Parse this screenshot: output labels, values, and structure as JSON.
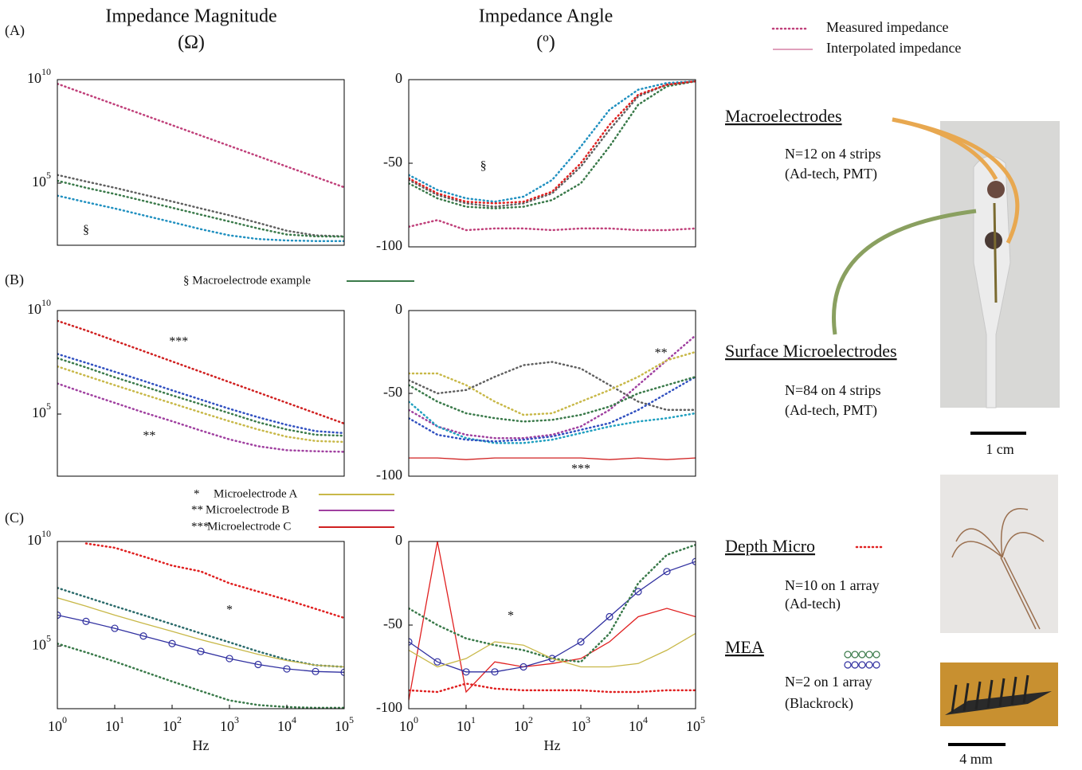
{
  "headers": {
    "magnitude": "Impedance Magnitude",
    "magnitude_unit": "(Ω)",
    "angle": "Impedance Angle",
    "angle_unit": "(º)"
  },
  "panels": [
    "(A)",
    "(B)",
    "(C)"
  ],
  "legend": {
    "measured": "Measured impedance",
    "interpolated": "Interpolated impedance",
    "macro": "§ Macroelectrode example",
    "micro_a_mark": "*",
    "micro_a": "Microelectrode A",
    "micro_b_mark": "**",
    "micro_b": "Microelectrode B",
    "micro_c_mark": "***",
    "micro_c": "Microelectrode C"
  },
  "devices": {
    "macro_title": "Macroelectrodes",
    "macro_n": "N=12 on 4 strips",
    "macro_src": "(Ad-tech, PMT)",
    "surface_title": "Surface Microelectrodes",
    "surface_n": "N=84 on 4 strips",
    "surface_src": "(Ad-tech, PMT)",
    "scale1": "1 cm",
    "depth_title": "Depth Micro",
    "depth_n": "N=10 on 1 array",
    "depth_src": "(Ad-tech)",
    "mea_title": "MEA",
    "mea_n": "N=2 on 1 array",
    "mea_src": "(Blackrock)",
    "scale2": "4 mm"
  },
  "chart_data": [
    {
      "type": "line",
      "xlog": true,
      "ylog": true,
      "xlim": [
        1,
        100000
      ],
      "ylim": [
        100,
        10000000000
      ],
      "yticks": [
        {
          "value": 100000,
          "label": "10",
          "sup": "5"
        },
        {
          "value": 10000000000,
          "label": "10",
          "sup": "10"
        }
      ],
      "x": [
        1,
        3.16,
        10,
        31.6,
        100,
        316,
        1000,
        3162,
        10000,
        31623,
        100000
      ],
      "annotations": [
        {
          "text": "§",
          "x": 3.16,
          "y": 500
        }
      ],
      "series": [
        {
          "color": "#c0407a",
          "dotted": true,
          "values": [
            6300000000,
            2000000000,
            630000000,
            200000000,
            63000000,
            20000000,
            6300000,
            2000000,
            630000,
            200000,
            63000
          ]
        },
        {
          "color": "#606060",
          "dotted": true,
          "values": [
            250000,
            120000,
            60000,
            28000,
            13000,
            6000,
            2800,
            1200,
            500,
            300,
            270
          ]
        },
        {
          "color": "#3a7a4a",
          "dotted": true,
          "values": [
            130000,
            60000,
            30000,
            14000,
            6500,
            3000,
            1400,
            650,
            330,
            270,
            260
          ]
        },
        {
          "color": "#2090c0",
          "dotted": true,
          "values": [
            25000,
            12000,
            6000,
            2800,
            1300,
            600,
            300,
            200,
            170,
            160,
            160
          ]
        }
      ]
    },
    {
      "type": "line",
      "xlog": true,
      "ylog": false,
      "xlim": [
        1,
        100000
      ],
      "ylim": [
        -100,
        0
      ],
      "yticks": [
        -100,
        -50,
        0
      ],
      "x": [
        1,
        3.16,
        10,
        31.6,
        100,
        316,
        1000,
        3162,
        10000,
        31623,
        100000
      ],
      "annotations": [
        {
          "text": "§",
          "x": 20,
          "y": -52
        }
      ],
      "series": [
        {
          "color": "#c0407a",
          "dotted": true,
          "values": [
            -88,
            -84,
            -90,
            -89,
            -89,
            -90,
            -89,
            -89,
            -90,
            -90,
            -89
          ]
        },
        {
          "color": "#2090c0",
          "dotted": true,
          "values": [
            -57,
            -66,
            -71,
            -73,
            -70,
            -60,
            -40,
            -18,
            -6,
            -2,
            -1
          ]
        },
        {
          "color": "#3a7a4a",
          "dotted": true,
          "values": [
            -62,
            -71,
            -76,
            -77,
            -76,
            -72,
            -62,
            -40,
            -15,
            -4,
            -1
          ]
        },
        {
          "color": "#606060",
          "dotted": true,
          "values": [
            -60,
            -69,
            -74,
            -76,
            -74,
            -68,
            -52,
            -30,
            -10,
            -3,
            -1
          ]
        },
        {
          "color": "#e02020",
          "dotted": true,
          "values": [
            -59,
            -68,
            -73,
            -74,
            -73,
            -67,
            -50,
            -27,
            -9,
            -3,
            -1
          ]
        }
      ]
    },
    {
      "type": "line",
      "xlog": true,
      "ylog": true,
      "xlim": [
        1,
        100000
      ],
      "ylim": [
        100,
        10000000000
      ],
      "yticks": [
        {
          "value": 100000,
          "label": "10",
          "sup": "5"
        },
        {
          "value": 10000000000,
          "label": "10",
          "sup": "10"
        }
      ],
      "x": [
        1,
        3.16,
        10,
        31.6,
        100,
        316,
        1000,
        3162,
        10000,
        31623,
        100000
      ],
      "annotations": [
        {
          "text": "***",
          "x": 130,
          "y": 300000000
        },
        {
          "text": "**",
          "x": 40,
          "y": 8000
        }
      ],
      "series": [
        {
          "color": "#d02020",
          "dotted": true,
          "values": [
            3200000000,
            1100000000,
            350000000,
            110000000,
            35000000,
            11000000,
            3500000,
            1100000,
            350000,
            110000,
            35000
          ]
        },
        {
          "color": "#3050c0",
          "dotted": true,
          "values": [
            80000000,
            30000000,
            11000000,
            4000000,
            1400000,
            500000,
            180000,
            70000,
            30000,
            15000,
            12000
          ]
        },
        {
          "color": "#3a7a4a",
          "dotted": true,
          "values": [
            50000000,
            18000000,
            6000000,
            2200000,
            800000,
            300000,
            110000,
            40000,
            18000,
            10000,
            9000
          ]
        },
        {
          "color": "#c8b848",
          "dotted": true,
          "values": [
            20000000,
            7000000,
            2500000,
            900000,
            330000,
            120000,
            45000,
            18000,
            8000,
            5000,
            4500
          ]
        },
        {
          "color": "#a040a0",
          "dotted": true,
          "values": [
            3000000,
            1000000,
            350000,
            120000,
            45000,
            16000,
            6000,
            2800,
            1800,
            1600,
            1500
          ]
        }
      ]
    },
    {
      "type": "line",
      "xlog": true,
      "ylog": false,
      "xlim": [
        1,
        100000
      ],
      "ylim": [
        -100,
        0
      ],
      "yticks": [
        -100,
        -50,
        0
      ],
      "x": [
        1,
        3.16,
        10,
        31.6,
        100,
        316,
        1000,
        3162,
        10000,
        31623,
        100000
      ],
      "annotations": [
        {
          "text": "**",
          "x": 25000,
          "y": -26
        },
        {
          "text": "***",
          "x": 1000,
          "y": -96
        }
      ],
      "series": [
        {
          "color": "#d02020",
          "dotted": false,
          "values": [
            -89,
            -89,
            -90,
            -89,
            -89,
            -89,
            -89,
            -90,
            -89,
            -90,
            -89
          ]
        },
        {
          "color": "#a040a0",
          "dotted": true,
          "values": [
            -60,
            -70,
            -75,
            -77,
            -77,
            -75,
            -70,
            -60,
            -45,
            -30,
            -15
          ]
        },
        {
          "color": "#606060",
          "dotted": true,
          "values": [
            -42,
            -50,
            -48,
            -40,
            -33,
            -31,
            -35,
            -45,
            -55,
            -60,
            -60
          ]
        },
        {
          "color": "#c8b848",
          "dotted": true,
          "values": [
            -38,
            -38,
            -45,
            -55,
            -63,
            -62,
            -55,
            -48,
            -40,
            -30,
            -25
          ]
        },
        {
          "color": "#20a0c0",
          "dotted": true,
          "values": [
            -55,
            -70,
            -77,
            -80,
            -80,
            -78,
            -74,
            -70,
            -67,
            -65,
            -62
          ]
        },
        {
          "color": "#3050c0",
          "dotted": true,
          "values": [
            -65,
            -75,
            -78,
            -79,
            -78,
            -76,
            -72,
            -68,
            -60,
            -50,
            -40
          ]
        },
        {
          "color": "#3a7a4a",
          "dotted": true,
          "values": [
            -45,
            -55,
            -62,
            -65,
            -67,
            -66,
            -63,
            -58,
            -50,
            -45,
            -40
          ]
        }
      ]
    },
    {
      "type": "line",
      "xlog": true,
      "ylog": true,
      "xlim": [
        1,
        100000
      ],
      "ylim": [
        100,
        10000000000
      ],
      "xlabel": "Hz",
      "yticks": [
        {
          "value": 100000,
          "label": "10",
          "sup": "5"
        },
        {
          "value": 10000000000,
          "label": "10",
          "sup": "10"
        }
      ],
      "xticks": [
        {
          "value": 1,
          "label": "10",
          "sup": "0"
        },
        {
          "value": 10,
          "label": "10",
          "sup": "1"
        },
        {
          "value": 100,
          "label": "10",
          "sup": "2"
        },
        {
          "value": 1000,
          "label": "10",
          "sup": "3"
        },
        {
          "value": 10000,
          "label": "10",
          "sup": "4"
        },
        {
          "value": 100000,
          "label": "10",
          "sup": "5"
        }
      ],
      "x": [
        1,
        3.16,
        10,
        31.6,
        100,
        316,
        1000,
        3162,
        10000,
        31623,
        100000
      ],
      "annotations": [
        {
          "text": "*",
          "x": 1000,
          "y": 5000000
        }
      ],
      "series": [
        {
          "color": "#e02020",
          "dotted": true,
          "values": [
            null,
            8000000000,
            5000000000,
            1900000000,
            700000000,
            370000000,
            100000000,
            40000000,
            16000000,
            6000000,
            2200000
          ]
        },
        {
          "color": "#2a6a6a",
          "dotted": true,
          "values": [
            60000000,
            22000000,
            8000000,
            3000000,
            1100000,
            400000,
            150000,
            55000,
            22000,
            12000,
            10000
          ]
        },
        {
          "color": "#c8b848",
          "dotted": false,
          "values": [
            20000000,
            8000000,
            3000000,
            1200000,
            500000,
            200000,
            90000,
            40000,
            20000,
            12000,
            10000
          ]
        },
        {
          "color": "#3030a0",
          "marker": "circle",
          "values": [
            3000000,
            1500000,
            700000,
            300000,
            130000,
            55000,
            25000,
            13000,
            8000,
            6000,
            5500
          ]
        },
        {
          "color": "#3a7a4a",
          "dotted": true,
          "values": [
            130000,
            50000,
            18000,
            6000,
            2000,
            700,
            250,
            150,
            120,
            110,
            110
          ]
        }
      ]
    },
    {
      "type": "line",
      "xlog": true,
      "ylog": false,
      "xlim": [
        1,
        100000
      ],
      "ylim": [
        -100,
        0
      ],
      "yticks": [
        -100,
        -50,
        0
      ],
      "xlabel": "Hz",
      "xticks": [
        {
          "value": 1,
          "label": "10",
          "sup": "0"
        },
        {
          "value": 10,
          "label": "10",
          "sup": "1"
        },
        {
          "value": 100,
          "label": "10",
          "sup": "2"
        },
        {
          "value": 1000,
          "label": "10",
          "sup": "3"
        },
        {
          "value": 10000,
          "label": "10",
          "sup": "4"
        },
        {
          "value": 100000,
          "label": "10",
          "sup": "5"
        }
      ],
      "x": [
        1,
        3.16,
        10,
        31.6,
        100,
        316,
        1000,
        3162,
        10000,
        31623,
        100000
      ],
      "annotations": [
        {
          "text": "*",
          "x": 60,
          "y": -45
        }
      ],
      "series": [
        {
          "color": "#e02020",
          "dotted": false,
          "values": [
            -95,
            0,
            -90,
            -72,
            -75,
            -73,
            -70,
            -60,
            -45,
            -40,
            -45
          ]
        },
        {
          "color": "#e02020",
          "dotted": true,
          "values": [
            -89,
            -90,
            -85,
            -88,
            -89,
            -89,
            -89,
            -90,
            -90,
            -89,
            -89
          ]
        },
        {
          "color": "#3030a0",
          "marker": "circle",
          "values": [
            -60,
            -72,
            -78,
            -78,
            -75,
            -70,
            -60,
            -45,
            -30,
            -18,
            -12
          ]
        },
        {
          "color": "#3a7a4a",
          "dotted": true,
          "values": [
            -40,
            -50,
            -58,
            -62,
            -65,
            -70,
            -72,
            -55,
            -25,
            -8,
            -2
          ]
        },
        {
          "color": "#c8b848",
          "dotted": false,
          "values": [
            -65,
            -75,
            -70,
            -60,
            -62,
            -70,
            -75,
            -75,
            -73,
            -65,
            -55
          ]
        }
      ]
    }
  ]
}
